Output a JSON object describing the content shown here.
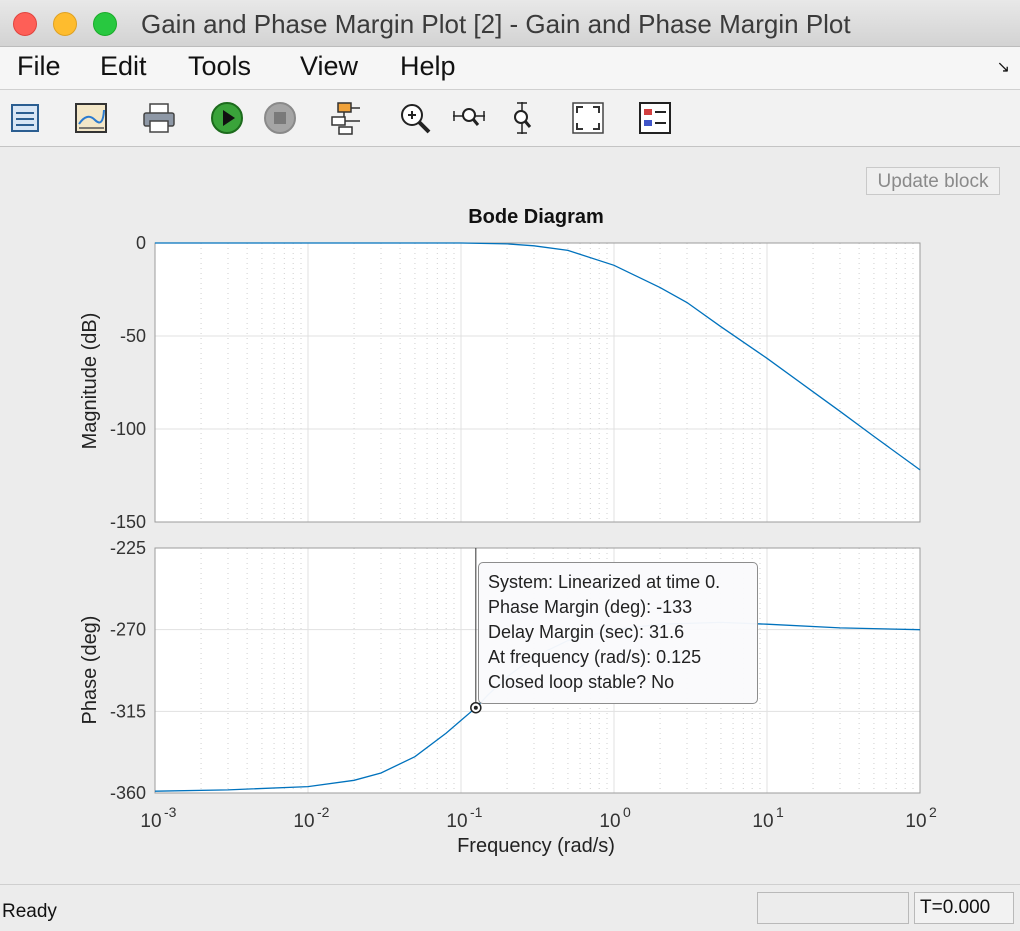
{
  "window": {
    "title": "Gain and Phase Margin Plot [2] - Gain and Phase Margin Plot"
  },
  "menubar": {
    "items": [
      "File",
      "Edit",
      "Tools",
      "View",
      "Help"
    ]
  },
  "toolbar": {
    "icons": [
      "block-parameters-icon",
      "plot-settings-icon",
      "print-icon",
      "run-icon",
      "stop-icon",
      "highlight-block-icon",
      "zoom-in-icon",
      "zoom-x-icon",
      "zoom-y-icon",
      "fit-to-view-icon",
      "legend-icon"
    ]
  },
  "update_button": {
    "label": "Update block"
  },
  "chart_data": {
    "type": "line",
    "title": "Bode Diagram",
    "xlabel": "Frequency  (rad/s)",
    "xscale": "log",
    "xlim": [
      0.001,
      100
    ],
    "x_ticks": [
      {
        "base": "10",
        "exp": "-3"
      },
      {
        "base": "10",
        "exp": "-2"
      },
      {
        "base": "10",
        "exp": "-1"
      },
      {
        "base": "10",
        "exp": "0"
      },
      {
        "base": "10",
        "exp": "1"
      },
      {
        "base": "10",
        "exp": "2"
      }
    ],
    "grid": true,
    "line_color": "#0072bd",
    "panels": [
      {
        "ylabel": "Magnitude (dB)",
        "ylim": [
          -150,
          0
        ],
        "y_ticks": [
          "0",
          "-50",
          "-100",
          "-150"
        ],
        "series": [
          {
            "x": [
              0.001,
              0.01,
              0.1,
              0.2,
              0.3,
              0.5,
              1,
              2,
              3,
              5,
              10,
              20,
              30,
              50,
              100
            ],
            "y": [
              0,
              0,
              0,
              -0.5,
              -1.5,
              -4,
              -12,
              -24,
              -32,
              -45,
              -62,
              -80,
              -90.5,
              -104,
              -122
            ]
          }
        ]
      },
      {
        "ylabel": "Phase (deg)",
        "ylim": [
          -360,
          -225
        ],
        "y_ticks": [
          "-225",
          "-270",
          "-315",
          "-360"
        ],
        "series": [
          {
            "x": [
              0.001,
              0.003,
              0.01,
              0.02,
              0.03,
              0.05,
              0.08,
              0.1,
              0.125,
              0.15,
              0.2,
              0.3,
              0.5,
              1,
              2,
              5,
              10,
              30,
              100
            ],
            "y": [
              -359,
              -358.3,
              -356.5,
              -353,
              -349,
              -340,
              -327,
              -320,
              -313,
              -306,
              -296,
              -285,
              -276,
              -270,
              -267,
              -266,
              -267,
              -269,
              -270
            ]
          }
        ]
      }
    ],
    "marker": {
      "x": 0.125,
      "y": -313
    }
  },
  "datatip": {
    "lines": [
      "System: Linearized at time 0.",
      "Phase Margin (deg): -133",
      "Delay Margin (sec): 31.6",
      "At frequency (rad/s): 0.125",
      "Closed loop stable? No"
    ]
  },
  "statusbar": {
    "status": "Ready",
    "time": "T=0.000"
  }
}
